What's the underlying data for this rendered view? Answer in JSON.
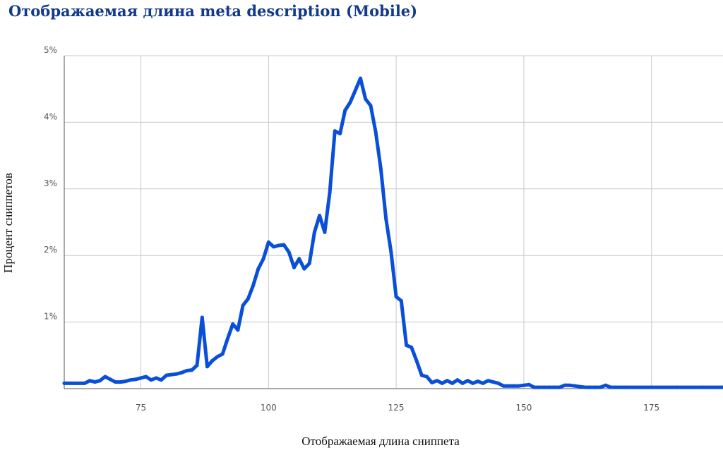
{
  "chart_data": {
    "type": "line",
    "title": "Отображаемая длина meta description (Mobile)",
    "xlabel": "Отображаемая длина сниппета",
    "ylabel": "Процент сниппетов",
    "xlim": [
      60,
      189
    ],
    "ylim": [
      0,
      5
    ],
    "x_ticks": [
      75,
      100,
      125,
      150,
      175
    ],
    "y_ticks": [
      1,
      2,
      3,
      4,
      5
    ],
    "x_tick_labels": [
      "75",
      "100",
      "125",
      "150",
      "175"
    ],
    "y_tick_labels": [
      "1%",
      "2%",
      "3%",
      "4%",
      "5%"
    ],
    "grid": true,
    "line_color": "#0a4fd8",
    "series": [
      {
        "x": [
          60,
          64,
          65,
          66,
          67,
          68,
          69,
          70,
          71,
          72,
          73,
          74,
          75,
          76,
          77,
          78,
          79,
          80,
          82,
          83,
          84,
          85,
          86,
          87,
          88,
          89,
          90,
          91,
          92,
          93,
          94,
          95,
          96,
          97,
          98,
          99,
          100,
          101,
          102,
          103,
          104,
          105,
          106,
          107,
          108,
          109,
          110,
          111,
          112,
          113,
          114,
          115,
          116,
          117,
          118,
          119,
          120,
          121,
          122,
          123,
          124,
          125,
          126,
          127,
          128,
          129,
          130,
          131,
          132,
          133,
          134,
          135,
          136,
          137,
          138,
          139,
          140,
          141,
          142,
          143,
          144,
          145,
          146,
          147,
          148,
          149,
          150,
          151,
          152,
          153,
          154,
          155,
          156,
          157,
          158,
          159,
          160,
          161,
          162,
          163,
          164,
          165,
          166,
          167,
          168,
          170,
          175,
          180,
          185,
          189
        ],
        "values": [
          0.08,
          0.08,
          0.12,
          0.1,
          0.12,
          0.18,
          0.14,
          0.1,
          0.1,
          0.11,
          0.13,
          0.14,
          0.16,
          0.18,
          0.13,
          0.16,
          0.13,
          0.2,
          0.22,
          0.24,
          0.27,
          0.28,
          0.35,
          1.07,
          0.33,
          0.42,
          0.48,
          0.52,
          0.75,
          0.97,
          0.88,
          1.25,
          1.35,
          1.55,
          1.8,
          1.95,
          2.2,
          2.13,
          2.15,
          2.16,
          2.05,
          1.82,
          1.95,
          1.8,
          1.88,
          2.35,
          2.6,
          2.35,
          2.95,
          3.87,
          3.83,
          4.18,
          4.3,
          4.48,
          4.66,
          4.35,
          4.25,
          3.85,
          3.3,
          2.55,
          2.05,
          1.38,
          1.32,
          0.65,
          0.62,
          0.42,
          0.2,
          0.18,
          0.09,
          0.12,
          0.08,
          0.12,
          0.08,
          0.13,
          0.08,
          0.12,
          0.08,
          0.11,
          0.08,
          0.12,
          0.1,
          0.08,
          0.04,
          0.04,
          0.04,
          0.04,
          0.05,
          0.06,
          0.02,
          0.02,
          0.02,
          0.02,
          0.02,
          0.02,
          0.05,
          0.05,
          0.04,
          0.03,
          0.02,
          0.02,
          0.02,
          0.02,
          0.05,
          0.02,
          0.02,
          0.02,
          0.02,
          0.02,
          0.02,
          0.02
        ]
      }
    ]
  }
}
